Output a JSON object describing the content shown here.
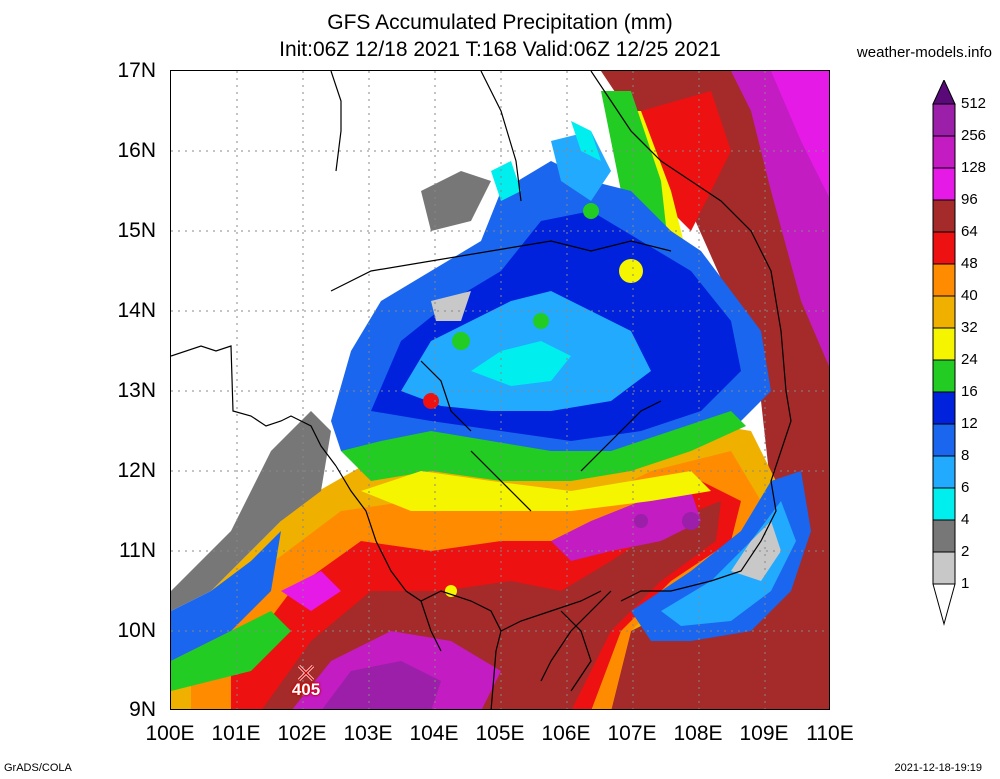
{
  "title": {
    "line1": "GFS Accumulated Precipitation (mm)",
    "line2": "Init:06Z 12/18 2021 T:168 Valid:06Z 12/25 2021"
  },
  "site": "weather-models.info",
  "map": {
    "lon_labels": [
      "100E",
      "101E",
      "102E",
      "103E",
      "104E",
      "105E",
      "106E",
      "107E",
      "108E",
      "109E",
      "110E"
    ],
    "lat_labels": [
      "17N",
      "16N",
      "15N",
      "14N",
      "13N",
      "12N",
      "11N",
      "10N",
      "9N"
    ],
    "max_value": "405",
    "max_marker_icon": "x-mark-icon"
  },
  "colorbar": {
    "levels": [
      "512",
      "256",
      "128",
      "96",
      "64",
      "48",
      "40",
      "32",
      "24",
      "16",
      "12",
      "8",
      "6",
      "4",
      "2",
      "1"
    ],
    "colors": [
      "#9b1fa8",
      "#c21cc2",
      "#e61ae6",
      "#a52a2a",
      "#ee1111",
      "#ff8c00",
      "#f0b000",
      "#f5f500",
      "#22cc22",
      "#0022dd",
      "#1a66ee",
      "#22aaff",
      "#00eeee",
      "#777777",
      "#c8c8c8",
      "#ffffff"
    ]
  },
  "footer": {
    "left": "GrADS/COLA",
    "right": "2021-12-18-19:19"
  }
}
